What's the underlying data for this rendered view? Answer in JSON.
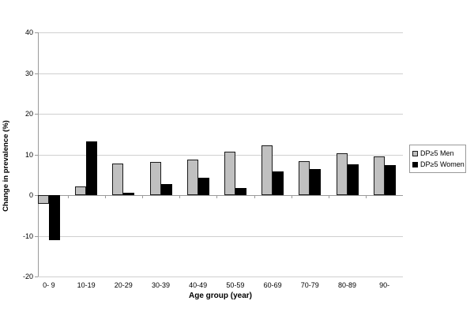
{
  "chart_data": {
    "type": "bar",
    "title": "",
    "xlabel": "Age group (year)",
    "ylabel": "Change in prevalence (%)",
    "categories": [
      "0- 9",
      "10-19",
      "20-29",
      "30-39",
      "40-49",
      "50-59",
      "60-69",
      "70-79",
      "80-89",
      "90-"
    ],
    "series": [
      {
        "name": "DP≥5 Men",
        "color": "#c0c0c0",
        "border": "#1a1a1a",
        "values": [
          -2.1,
          2.1,
          7.7,
          8.2,
          8.8,
          10.7,
          12.3,
          8.4,
          10.2,
          9.5
        ]
      },
      {
        "name": "DP≥5 Women",
        "color": "#000000",
        "border": "#000000",
        "values": [
          -11,
          13.3,
          0.5,
          2.8,
          4.2,
          1.8,
          5.8,
          6.5,
          7.6,
          7.3
        ]
      }
    ],
    "ylim": [
      -20,
      40
    ],
    "yticks": [
      -20,
      -10,
      0,
      10,
      20,
      30,
      40
    ],
    "grid": "horizontal",
    "legend_position": "right",
    "palette": {
      "background": "#ffffff",
      "gridline": "#cfcfcf",
      "axis": "#9a9a9a",
      "text": "#000000"
    }
  }
}
